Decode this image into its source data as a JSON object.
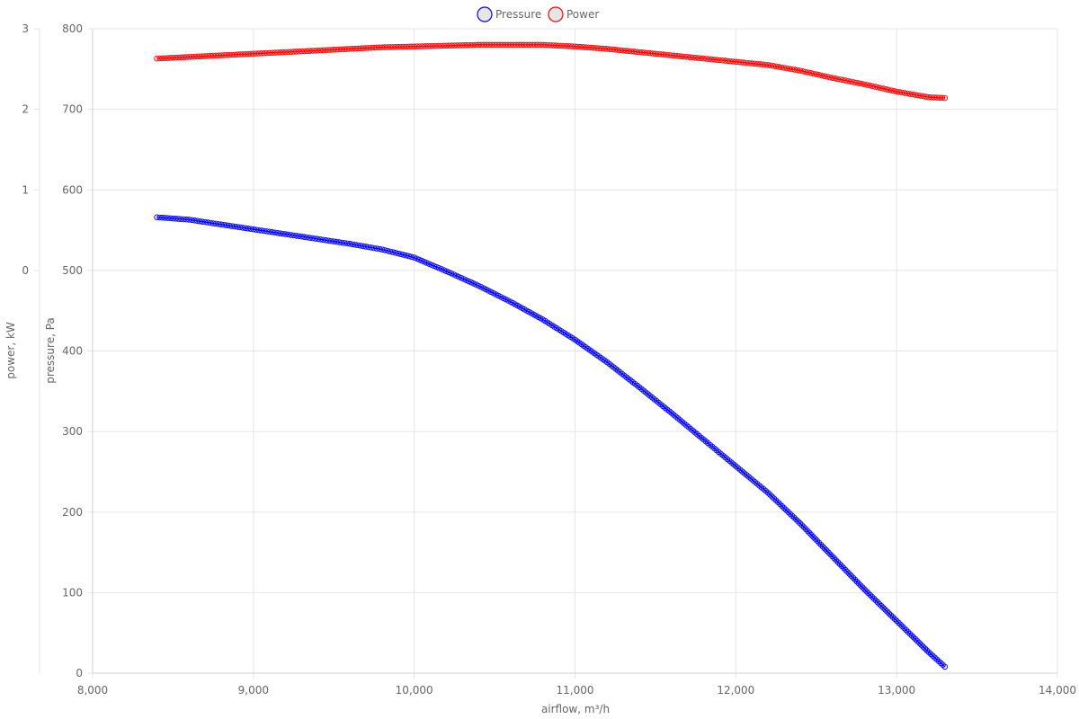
{
  "chart_data": {
    "type": "line",
    "xlabel": "airflow, m³/h",
    "xlim": [
      8000,
      14000
    ],
    "x_ticks": [
      "8,000",
      "9,000",
      "10,000",
      "11,000",
      "12,000",
      "13,000",
      "14,000"
    ],
    "y_axes": [
      {
        "id": "pressure",
        "label": "pressure, Pa",
        "range": [
          0,
          800
        ],
        "ticks": [
          "0",
          "100",
          "200",
          "300",
          "400",
          "500",
          "600",
          "700",
          "800"
        ]
      },
      {
        "id": "power",
        "label": "power, kW",
        "range": [
          -5,
          3
        ],
        "ticks": [
          "0",
          "1",
          "2",
          "3"
        ]
      }
    ],
    "grid": true,
    "legend_position": "top-center",
    "series": [
      {
        "name": "Pressure",
        "axis": "pressure",
        "color": "#0000ff",
        "x": [
          8400,
          8600,
          8800,
          9000,
          9200,
          9400,
          9600,
          9800,
          10000,
          10200,
          10400,
          10600,
          10800,
          11000,
          11200,
          11400,
          11600,
          11800,
          12000,
          12200,
          12400,
          12600,
          12800,
          13000,
          13200,
          13300
        ],
        "y": [
          566,
          563,
          557,
          551,
          545,
          539,
          533,
          526,
          516,
          499,
          481,
          461,
          439,
          414,
          386,
          355,
          323,
          290,
          257,
          224,
          186,
          145,
          104,
          65,
          26,
          8
        ]
      },
      {
        "name": "Power",
        "axis": "power",
        "color": "#ff0000",
        "x": [
          8400,
          8600,
          8800,
          9000,
          9200,
          9400,
          9600,
          9800,
          10000,
          10200,
          10400,
          10600,
          10800,
          11000,
          11200,
          11400,
          11600,
          11800,
          12000,
          12200,
          12400,
          12600,
          12800,
          13000,
          13200,
          13300
        ],
        "y": [
          2.63,
          2.65,
          2.67,
          2.69,
          2.71,
          2.73,
          2.75,
          2.77,
          2.78,
          2.79,
          2.8,
          2.8,
          2.8,
          2.78,
          2.75,
          2.71,
          2.67,
          2.63,
          2.59,
          2.55,
          2.48,
          2.39,
          2.31,
          2.22,
          2.15,
          2.14
        ]
      }
    ]
  }
}
